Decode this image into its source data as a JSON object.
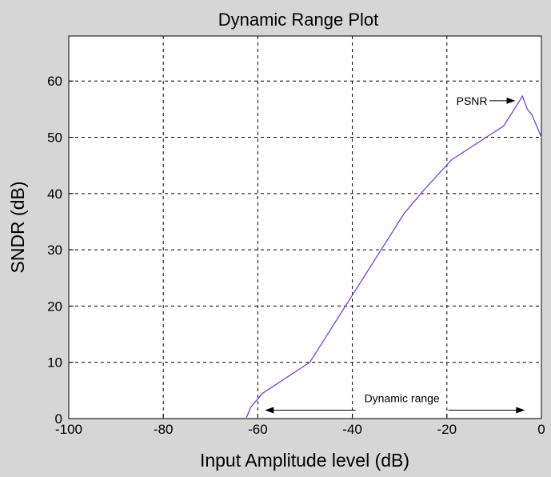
{
  "chart_data": {
    "type": "line",
    "title": "Dynamic Range Plot",
    "xlabel": "Input Amplitude level (dB)",
    "ylabel": "SNDR (dB)",
    "xlim": [
      -100,
      0
    ],
    "ylim": [
      0,
      68
    ],
    "xticks": [
      -100,
      -80,
      -60,
      -40,
      -20,
      0
    ],
    "yticks": [
      0,
      10,
      20,
      30,
      40,
      50,
      60
    ],
    "xtick_labels": [
      "-100",
      "-80",
      "-60",
      "-40",
      "-20",
      "0"
    ],
    "ytick_labels": [
      "0",
      "10",
      "20",
      "30",
      "40",
      "50",
      "60"
    ],
    "grid": true,
    "series": [
      {
        "color": "#7b3fe4",
        "x": [
          -62.5,
          -61.5,
          -59,
          -49,
          -29,
          -25,
          -19,
          -8,
          -4,
          -3,
          -2,
          -1,
          0
        ],
        "y": [
          0,
          2,
          4.5,
          10,
          36.5,
          40.5,
          46,
          52,
          57.3,
          55,
          54,
          52,
          50
        ]
      }
    ],
    "annotations": [
      {
        "text": "PSNR",
        "arrow": "right",
        "x_text": -18,
        "x_arrow_start": -11,
        "x_arrow_end": -5.5,
        "y": 56.5
      },
      {
        "text": "Dynamic range",
        "arrow": "both",
        "x_start": -58.5,
        "x_end": -3.5,
        "y": 1.5,
        "x_text": -29.5,
        "y_text": 2.5
      }
    ]
  },
  "colors": {
    "background": "#d6d6d6",
    "plot_area": "#ffffff",
    "line": "#7b3fe4",
    "grid": "#000000"
  }
}
